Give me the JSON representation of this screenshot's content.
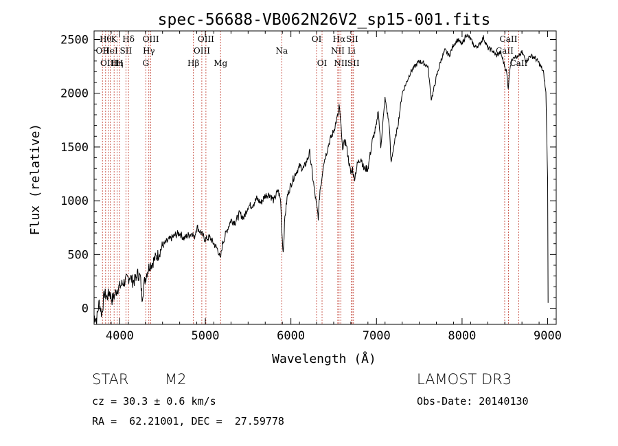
{
  "chart_data": {
    "type": "line",
    "title": "spec-56688-VB062N26V2_sp15-001.fits",
    "xlabel": "Wavelength (Å)",
    "ylabel": "Flux (relative)",
    "xlim": [
      3700,
      9100
    ],
    "ylim": [
      -150,
      2580
    ],
    "xticks": [
      4000,
      5000,
      6000,
      7000,
      8000,
      9000
    ],
    "yticks": [
      0,
      500,
      1000,
      1500,
      2000,
      2500
    ],
    "series": [
      {
        "name": "spectrum",
        "x": [
          3700,
          3730,
          3760,
          3790,
          3820,
          3850,
          3880,
          3910,
          3940,
          3970,
          4000,
          4030,
          4060,
          4090,
          4120,
          4150,
          4180,
          4210,
          4240,
          4260,
          4290,
          4320,
          4350,
          4380,
          4400,
          4450,
          4500,
          4550,
          4600,
          4650,
          4700,
          4750,
          4800,
          4850,
          4870,
          4900,
          4950,
          5000,
          5050,
          5100,
          5150,
          5175,
          5200,
          5250,
          5300,
          5350,
          5400,
          5450,
          5500,
          5550,
          5600,
          5650,
          5700,
          5750,
          5800,
          5850,
          5880,
          5895,
          5910,
          5930,
          5960,
          6000,
          6050,
          6100,
          6150,
          6200,
          6220,
          6250,
          6300,
          6320,
          6340,
          6360,
          6380,
          6400,
          6450,
          6500,
          6550,
          6563,
          6580,
          6600,
          6640,
          6680,
          6700,
          6720,
          6740,
          6780,
          6820,
          6850,
          6900,
          6950,
          7000,
          7020,
          7050,
          7100,
          7150,
          7170,
          7200,
          7250,
          7300,
          7350,
          7400,
          7450,
          7500,
          7550,
          7600,
          7620,
          7640,
          7660,
          7700,
          7750,
          7800,
          7850,
          7900,
          7950,
          8000,
          8050,
          8100,
          8150,
          8200,
          8250,
          8300,
          8350,
          8400,
          8450,
          8500,
          8520,
          8540,
          8560,
          8600,
          8650,
          8700,
          8750,
          8800,
          8850,
          8900,
          8950,
          8980,
          9000,
          9005
        ],
        "values": [
          -80,
          -100,
          60,
          -60,
          140,
          100,
          150,
          80,
          120,
          180,
          200,
          230,
          250,
          270,
          300,
          250,
          260,
          320,
          290,
          100,
          250,
          340,
          400,
          420,
          450,
          500,
          580,
          620,
          650,
          680,
          700,
          650,
          680,
          700,
          650,
          760,
          700,
          640,
          660,
          600,
          540,
          450,
          600,
          720,
          820,
          800,
          880,
          840,
          950,
          960,
          1020,
          980,
          1050,
          1060,
          1000,
          1100,
          1000,
          700,
          520,
          850,
          1050,
          1150,
          1250,
          1320,
          1300,
          1400,
          1450,
          1250,
          950,
          850,
          1100,
          1200,
          1350,
          1400,
          1550,
          1650,
          1800,
          1880,
          1750,
          1500,
          1550,
          1350,
          1250,
          1300,
          1200,
          1350,
          1400,
          1300,
          1300,
          1550,
          1700,
          1850,
          1500,
          1950,
          1700,
          1350,
          1500,
          1700,
          2000,
          2100,
          2200,
          2250,
          2300,
          2280,
          2250,
          2100,
          1950,
          2000,
          2150,
          2300,
          2400,
          2350,
          2450,
          2500,
          2450,
          2550,
          2500,
          2430,
          2450,
          2520,
          2420,
          2400,
          2350,
          2380,
          2250,
          2200,
          2050,
          2250,
          2350,
          2330,
          2380,
          2300,
          2350,
          2330,
          2280,
          2200,
          2000,
          1200,
          50
        ]
      }
    ],
    "lines": [
      {
        "w": 3798,
        "label": "OII",
        "row": 1
      },
      {
        "w": 3835,
        "label": "Hθ",
        "row": 0
      },
      {
        "w": 3869,
        "label": "OIII",
        "row": 2
      },
      {
        "w": 3889,
        "label": "HeI",
        "row": 1
      },
      {
        "w": 3934,
        "label": "K",
        "row": 0
      },
      {
        "w": 3970,
        "label": "Hη",
        "row": 2
      },
      {
        "w": 4000,
        "label": "H",
        "row": 2
      },
      {
        "w": 4072,
        "label": "SII",
        "row": 1
      },
      {
        "w": 4102,
        "label": "Hδ",
        "row": 0
      },
      {
        "w": 4304,
        "label": "G",
        "row": 2
      },
      {
        "w": 4340,
        "label": "Hγ",
        "row": 1
      },
      {
        "w": 4363,
        "label": "OIII",
        "row": 0
      },
      {
        "w": 4861,
        "label": "Hβ",
        "row": 2
      },
      {
        "w": 4959,
        "label": "OIII",
        "row": 1
      },
      {
        "w": 5007,
        "label": "OIII",
        "row": 0
      },
      {
        "w": 5178,
        "label": "Mg",
        "row": 2
      },
      {
        "w": 5893,
        "label": "Na",
        "row": 1
      },
      {
        "w": 6300,
        "label": "OI",
        "row": 0
      },
      {
        "w": 6364,
        "label": "OI",
        "row": 2
      },
      {
        "w": 6548,
        "label": "NII",
        "row": 1
      },
      {
        "w": 6563,
        "label": "Hα",
        "row": 0
      },
      {
        "w": 6583,
        "label": "NII",
        "row": 2
      },
      {
        "w": 6708,
        "label": "Li",
        "row": 1
      },
      {
        "w": 6716,
        "label": "SII",
        "row": 0
      },
      {
        "w": 6731,
        "label": "SII",
        "row": 2
      },
      {
        "w": 8498,
        "label": "CaII",
        "row": 1
      },
      {
        "w": 8542,
        "label": "CaII",
        "row": 0
      },
      {
        "w": 8662,
        "label": "CaII",
        "row": 2
      }
    ],
    "colors": {
      "line_markers": "#c0392b",
      "spectrum": "#000000"
    }
  },
  "info": {
    "class": "STAR",
    "subclass": "M2",
    "cz": "cz = 30.3 ± 0.6 km/s",
    "coords": "RA =  62.21001, DEC =  27.59778",
    "survey": "LAMOST DR3",
    "obsdate": "Obs-Date: 20140130"
  }
}
